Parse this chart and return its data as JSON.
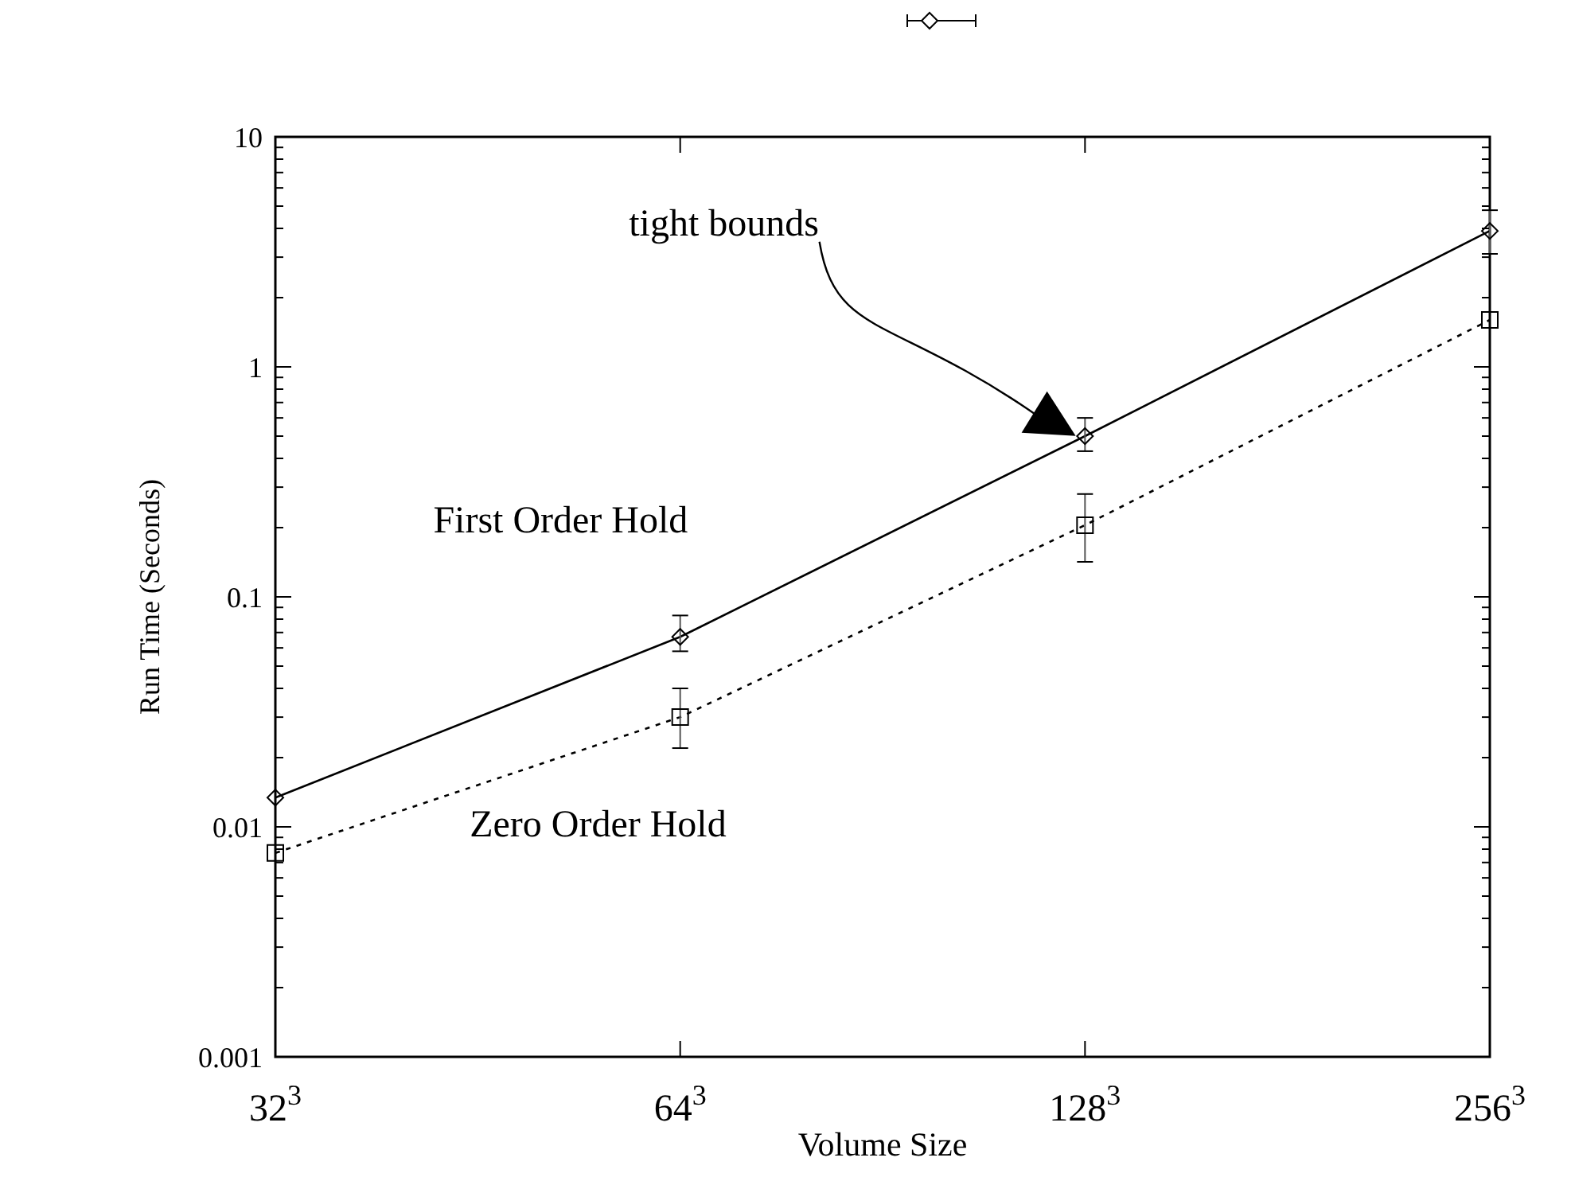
{
  "chart_data": {
    "type": "line",
    "xlabel": "Volume Size",
    "ylabel": "Run Time (Seconds)",
    "log": "y",
    "grid": false,
    "categories": [
      "32$^{3}$",
      "64$^{3}$",
      "128$^{3}$",
      "256$^{3}$"
    ],
    "ylim": [
      0.001,
      10
    ],
    "yticks": [
      0.001,
      0.01,
      0.1,
      1,
      10
    ],
    "series": [
      {
        "name": "First Order Hold",
        "color": "#000000",
        "marker": "diamond",
        "line_style": "solid",
        "values": [
          0.0134,
          0.067,
          0.5,
          3.9
        ],
        "errors": [
          null,
          [
            0.058,
            0.083
          ],
          [
            0.43,
            0.6
          ],
          [
            3.1,
            4.8
          ]
        ]
      },
      {
        "name": "Zero Order Hold",
        "color": "#000000",
        "marker": "square",
        "line_style": "dotted",
        "values": [
          0.0077,
          0.03,
          0.205,
          1.6
        ],
        "errors": [
          null,
          [
            0.022,
            0.04
          ],
          [
            0.142,
            0.28
          ],
          null
        ]
      }
    ],
    "annotations": [
      "tight bounds"
    ]
  }
}
